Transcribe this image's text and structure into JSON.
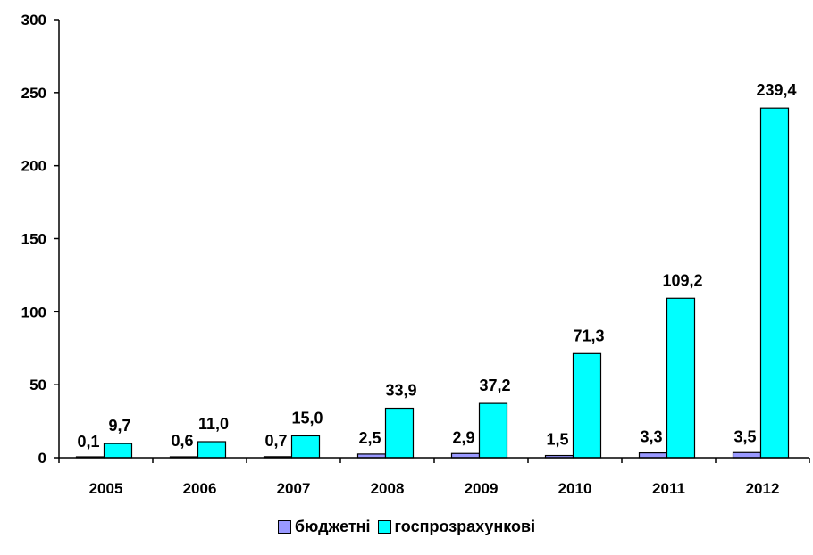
{
  "chart_data": {
    "type": "bar",
    "categories": [
      "2005",
      "2006",
      "2007",
      "2008",
      "2009",
      "2010",
      "2011",
      "2012"
    ],
    "series": [
      {
        "name": "бюджетні",
        "values": [
          0.1,
          0.6,
          0.7,
          2.5,
          2.9,
          1.5,
          3.3,
          3.5
        ],
        "labels": [
          "0,1",
          "0,6",
          "0,7",
          "2,5",
          "2,9",
          "1,5",
          "3,3",
          "3,5"
        ],
        "color": "#9999FF"
      },
      {
        "name": "госпрозрахункові",
        "values": [
          9.7,
          11.0,
          15.0,
          33.9,
          37.2,
          71.3,
          109.2,
          239.4
        ],
        "labels": [
          "9,7",
          "11,0",
          "15,0",
          "33,9",
          "37,2",
          "71,3",
          "109,2",
          "239,4"
        ],
        "color": "#00FFFF"
      }
    ],
    "yticks": [
      "0",
      "50",
      "100",
      "150",
      "200",
      "250",
      "300"
    ],
    "ylim": [
      0,
      300
    ],
    "grid": false,
    "legend_position": "bottom"
  }
}
